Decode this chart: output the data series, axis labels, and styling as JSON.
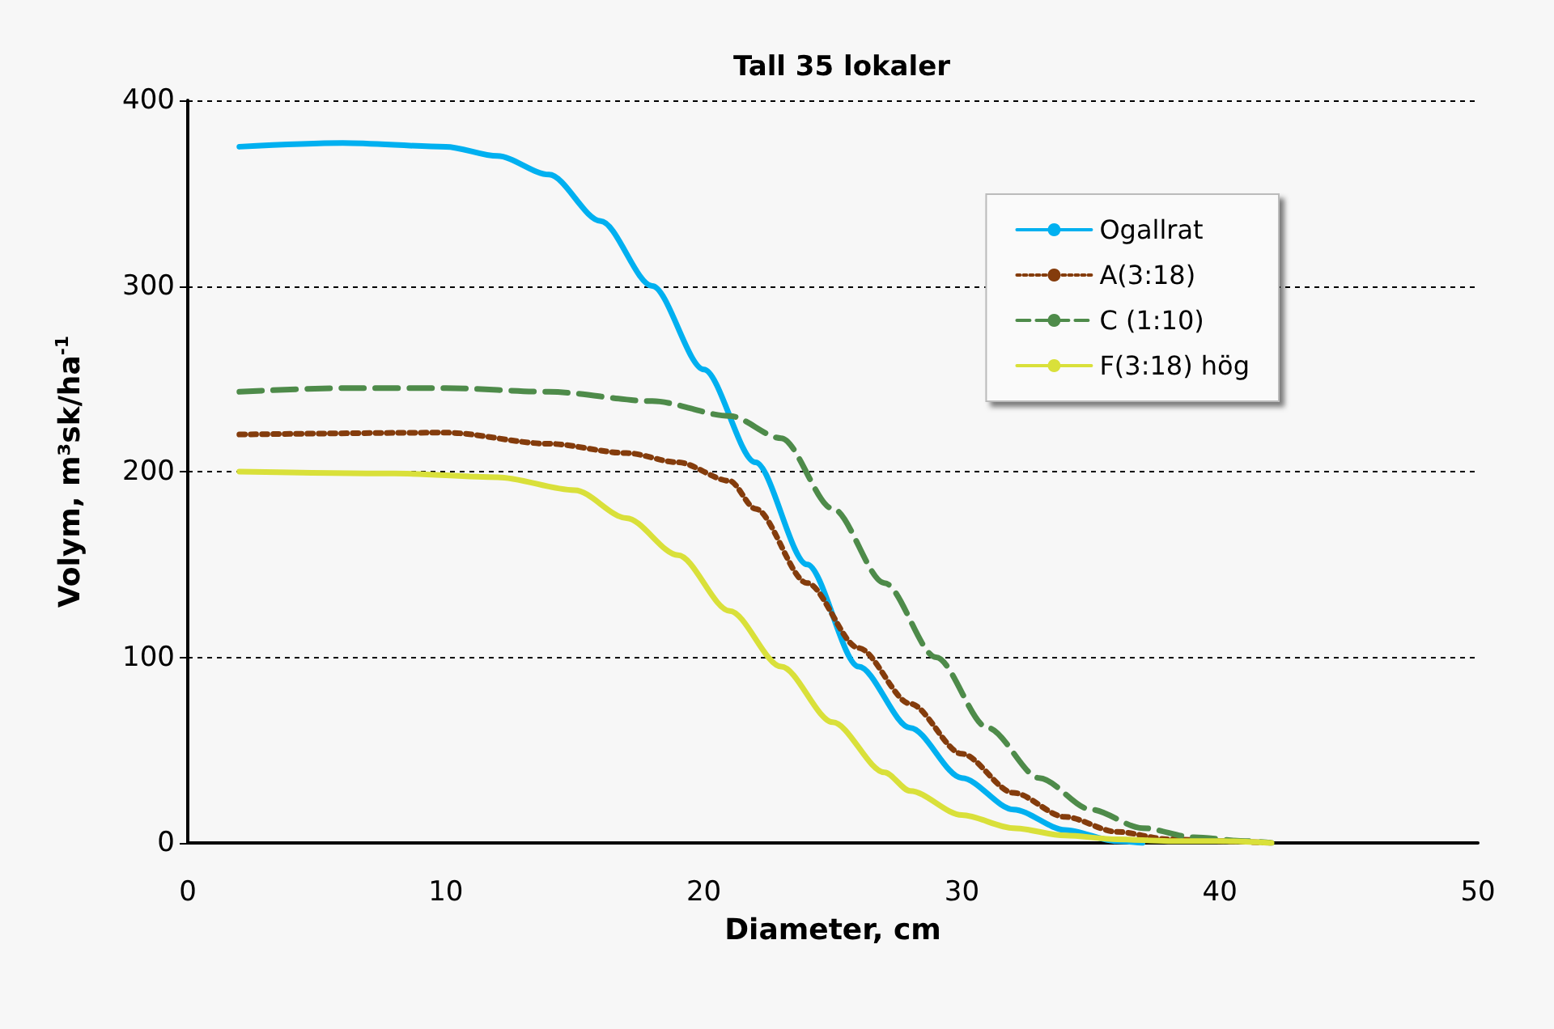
{
  "chart_data": {
    "type": "line",
    "title": "Tall 35 lokaler",
    "xlabel": "Diameter, cm",
    "ylabel": "Volym, m³sk/ha$^{-1}$",
    "xlim": [
      0,
      50
    ],
    "xticks": [
      0,
      10,
      20,
      30,
      40,
      50
    ],
    "ylim": [
      0,
      400
    ],
    "yticks": [
      0,
      100,
      200,
      300,
      400
    ],
    "grid": "y",
    "legend": "top right",
    "marker": "none",
    "series": [
      {
        "name": "Ogallrat",
        "color": "#00b0f0",
        "line_style": "solid",
        "x": [
          2,
          6,
          10,
          12,
          14,
          16,
          18,
          20,
          22,
          24,
          26,
          28,
          30,
          32,
          34,
          36,
          37
        ],
        "values": [
          375,
          377,
          375,
          370,
          360,
          335,
          300,
          255,
          205,
          150,
          95,
          62,
          35,
          18,
          7,
          1,
          0
        ]
      },
      {
        "name": "A(3:18)",
        "color": "#843c0c",
        "line_style": "dotted",
        "x": [
          2,
          10,
          14,
          17,
          19,
          21,
          22,
          24,
          26,
          28,
          30,
          32,
          34,
          36,
          38,
          40,
          42
        ],
        "values": [
          220,
          221,
          215,
          210,
          205,
          195,
          180,
          140,
          105,
          75,
          48,
          27,
          14,
          6,
          2,
          1,
          0
        ]
      },
      {
        "name": "C (1:10)",
        "color": "#4e8b4a",
        "line_style": "dashed",
        "x": [
          2,
          6,
          10,
          14,
          18,
          21,
          23,
          25,
          27,
          29,
          31,
          33,
          35,
          37,
          39,
          41,
          42
        ],
        "values": [
          243,
          245,
          245,
          243,
          238,
          230,
          218,
          180,
          140,
          100,
          62,
          35,
          18,
          8,
          3,
          1,
          0
        ]
      },
      {
        "name": "F(3:18) hög",
        "color": "#d9e03a",
        "line_style": "solid",
        "x": [
          2,
          8,
          12,
          15,
          17,
          19,
          21,
          23,
          25,
          27,
          28,
          30,
          32,
          34,
          36,
          38,
          40,
          42
        ],
        "values": [
          200,
          199,
          197,
          190,
          175,
          155,
          125,
          95,
          65,
          38,
          28,
          15,
          8,
          4,
          2,
          1,
          1,
          0
        ]
      }
    ]
  }
}
